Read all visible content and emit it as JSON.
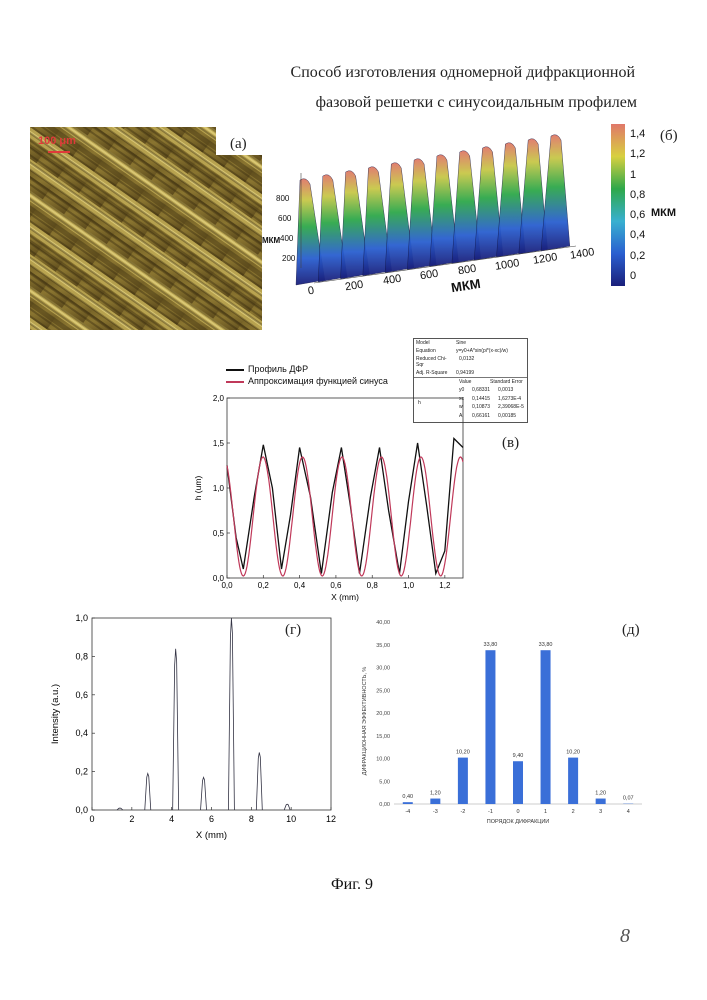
{
  "header": {
    "title_line1": "Способ изготовления одномерной дифракционной",
    "title_line2": "фазовой решетки с синусоидальным профилем"
  },
  "panels": {
    "a": {
      "label": "(а)",
      "scale_text": "100 μm"
    },
    "b": {
      "label": "(б)",
      "unit": "МКМ",
      "colorbar_ticks": [
        "1,4",
        "1,2",
        "1",
        "0,8",
        "0,6",
        "0,4",
        "0,2",
        "0"
      ],
      "x_ticks": [
        "0",
        "200",
        "400",
        "600",
        "800",
        "1000",
        "1200",
        "1400"
      ],
      "x_label": "МКМ",
      "y_ticks": [
        "800",
        "600",
        "400",
        "200"
      ],
      "y_label": "МКМ",
      "colors": {
        "low": "#1a1f7a",
        "mid": "#2ea84a",
        "high": "#e0786a"
      }
    },
    "v": {
      "label": "(в)",
      "legend": [
        "Профиль ДФР",
        "Аппроксимация функцией синуса"
      ],
      "series_colors": [
        "#111111",
        "#c0395a"
      ],
      "x_label": "X (mm)",
      "y_label": "h (um)",
      "x_ticks": [
        "0,0",
        "0,2",
        "0,4",
        "0,6",
        "0,8",
        "1,0",
        "1,2"
      ],
      "y_ticks": [
        "0,0",
        "0,5",
        "1,0",
        "1,5",
        "2,0"
      ],
      "fit_table": {
        "model_label": "Model",
        "model_value": "Sine",
        "equation_label": "Equation",
        "equation_value": "y=y0+A*sin(pi*(x-xc)/w)",
        "chi_label": "Reduced Chi-Sqr",
        "chi_value": "0,0132",
        "r2_label": "Adj. R-Square",
        "r2_value": "0,94199",
        "col_value": "Value",
        "col_error": "Standard Error",
        "row_group": "h",
        "rows": [
          {
            "p": "y0",
            "v": "0,68331",
            "e": "0,0013"
          },
          {
            "p": "xc",
            "v": "0,14415",
            "e": "1,6273E-4"
          },
          {
            "p": "w",
            "v": "0,10873",
            "e": "2,39068E-5"
          },
          {
            "p": "A",
            "v": "0,66161",
            "e": "0,00185"
          }
        ]
      }
    },
    "g": {
      "label": "(г)",
      "x_label": "X (mm)",
      "y_label": "Intensity (a.u.)",
      "x_ticks": [
        "0",
        "2",
        "4",
        "6",
        "8",
        "10",
        "12"
      ],
      "y_ticks": [
        "0,0",
        "0,2",
        "0,4",
        "0,6",
        "0,8",
        "1,0"
      ]
    },
    "d": {
      "label": "(д)",
      "x_label": "ПОРЯДОК ДИФРАКЦИИ",
      "y_label": "ДИФРАКЦИОННАЯ ЭФФЕКТИВНОСТЬ, %",
      "y_ticks": [
        "0,00",
        "5,00",
        "10,00",
        "15,00",
        "20,00",
        "25,00",
        "30,00",
        "35,00",
        "40,00"
      ],
      "bar_color": "#3a6fd8"
    }
  },
  "chart_data": [
    {
      "type": "line",
      "panel": "в",
      "xlabel": "X (mm)",
      "ylabel": "h (um)",
      "xlim": [
        0,
        1.3
      ],
      "ylim": [
        0,
        2.0
      ],
      "series": [
        {
          "name": "Профиль ДФР",
          "function": "measured",
          "x": [
            0.0,
            0.05,
            0.09,
            0.15,
            0.2,
            0.25,
            0.3,
            0.35,
            0.4,
            0.46,
            0.52,
            0.58,
            0.63,
            0.68,
            0.73,
            0.79,
            0.84,
            0.89,
            0.95,
            1.0,
            1.05,
            1.1,
            1.15,
            1.2,
            1.25,
            1.3
          ],
          "y": [
            1.25,
            0.45,
            0.1,
            0.9,
            1.48,
            1.0,
            0.1,
            0.7,
            1.45,
            0.9,
            0.05,
            0.95,
            1.45,
            0.8,
            0.05,
            0.9,
            1.45,
            0.75,
            0.05,
            0.85,
            1.5,
            0.8,
            0.05,
            0.3,
            1.55,
            1.45
          ]
        },
        {
          "name": "Аппроксимация функцией синуса",
          "function": "y=y0+A*sin(pi*(x-xc)/w)",
          "y0": 0.68331,
          "xc": 0.14415,
          "w": 0.10873,
          "A": 0.66161
        }
      ]
    },
    {
      "type": "line",
      "panel": "г",
      "xlabel": "X (mm)",
      "ylabel": "Intensity (a.u.)",
      "xlim": [
        0,
        12
      ],
      "ylim": [
        0,
        1.0
      ],
      "peaks": [
        {
          "x": 1.4,
          "y": 0.01
        },
        {
          "x": 2.8,
          "y": 0.19
        },
        {
          "x": 4.2,
          "y": 0.84
        },
        {
          "x": 5.6,
          "y": 0.17
        },
        {
          "x": 7.0,
          "y": 1.0
        },
        {
          "x": 8.4,
          "y": 0.3
        },
        {
          "x": 9.8,
          "y": 0.03
        }
      ]
    },
    {
      "type": "bar",
      "panel": "д",
      "xlabel": "ПОРЯДОК ДИФРАКЦИИ",
      "ylabel": "ДИФРАКЦИОННАЯ ЭФФЕКТИВНОСТЬ, %",
      "ylim": [
        0,
        40
      ],
      "categories": [
        "-4",
        "-3",
        "-2",
        "-1",
        "0",
        "1",
        "2",
        "3",
        "4"
      ],
      "values": [
        0.4,
        1.2,
        10.2,
        33.8,
        9.4,
        33.8,
        10.2,
        1.2,
        0.07
      ],
      "value_labels": [
        "0,40",
        "1,20",
        "10,20",
        "33,80",
        "9,40",
        "33,80",
        "10,20",
        "1,20",
        "0,07"
      ]
    }
  ],
  "footer": {
    "caption": "Фиг. 9",
    "page_number": "8"
  }
}
